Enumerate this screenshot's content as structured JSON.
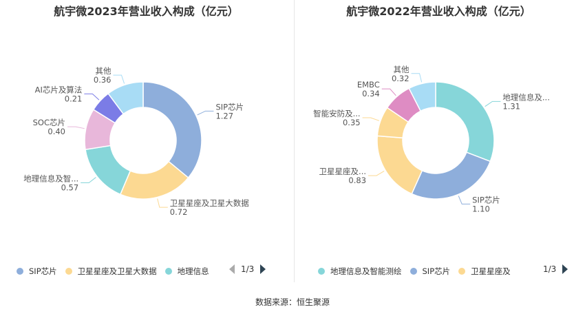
{
  "source": "数据来源：恒生聚源",
  "colors": {
    "SIP芯片": "#8eaedb",
    "卫星星座及卫星大数据": "#fcd992",
    "地理信息及智能测绘": "#86d6d9",
    "SOC芯片": "#e8b7da",
    "AI芯片及算法": "#7b7ce6",
    "其他": "#a8dcf5",
    "智能安防及": "#fcd992",
    "EMBC": "#de8cc3"
  },
  "chart_data": [
    {
      "type": "pie",
      "title": "航宇微2023年营业收入构成（亿元）",
      "unit": "亿元",
      "slices": [
        {
          "name": "SIP芯片",
          "label": "SIP芯片",
          "value": 1.27,
          "value_label": "1.27",
          "color": "#8eaedb"
        },
        {
          "name": "卫星星座及卫星大数据",
          "label": "卫星星座及卫星大数据",
          "value": 0.72,
          "value_label": "0.72",
          "color": "#fcd992"
        },
        {
          "name": "地理信息及智能测绘",
          "label": "地理信息及智...",
          "value": 0.57,
          "value_label": "0.57",
          "color": "#86d6d9"
        },
        {
          "name": "SOC芯片",
          "label": "SOC芯片",
          "value": 0.4,
          "value_label": "0.40",
          "color": "#e8b7da"
        },
        {
          "name": "AI芯片及算法",
          "label": "AI芯片及算法",
          "value": 0.21,
          "value_label": "0.21",
          "color": "#7b7ce6"
        },
        {
          "name": "其他",
          "label": "其他",
          "value": 0.36,
          "value_label": "0.36",
          "color": "#a8dcf5"
        }
      ],
      "legend": {
        "items": [
          {
            "name": "SIP芯片",
            "color": "#8eaedb"
          },
          {
            "name": "卫星星座及卫星大数据",
            "color": "#fcd992"
          },
          {
            "name": "地理信息",
            "color": "#86d6d9"
          }
        ],
        "page": "1/3"
      }
    },
    {
      "type": "pie",
      "title": "航宇微2022年营业收入构成（亿元）",
      "unit": "亿元",
      "slices": [
        {
          "name": "地理信息及智能测绘",
          "label": "地理信息及...",
          "value": 1.31,
          "value_label": "1.31",
          "color": "#86d6d9"
        },
        {
          "name": "SIP芯片",
          "label": "SIP芯片",
          "value": 1.1,
          "value_label": "1.10",
          "color": "#8eaedb"
        },
        {
          "name": "卫星星座及卫星大数据",
          "label": "卫星星座及...",
          "value": 0.83,
          "value_label": "0.83",
          "color": "#fcd992"
        },
        {
          "name": "智能安防及",
          "label": "智能安防及...",
          "value": 0.35,
          "value_label": "0.35",
          "color": "#fcd992"
        },
        {
          "name": "EMBC",
          "label": "EMBC",
          "value": 0.34,
          "value_label": "0.34",
          "color": "#de8cc3"
        },
        {
          "name": "其他",
          "label": "其他",
          "value": 0.32,
          "value_label": "0.32",
          "color": "#a8dcf5"
        }
      ],
      "legend": {
        "items": [
          {
            "name": "地理信息及智能测绘",
            "color": "#86d6d9"
          },
          {
            "name": "SIP芯片",
            "color": "#8eaedb"
          },
          {
            "name": "卫星星座及",
            "color": "#fcd992"
          }
        ],
        "page": "1/3"
      }
    }
  ]
}
